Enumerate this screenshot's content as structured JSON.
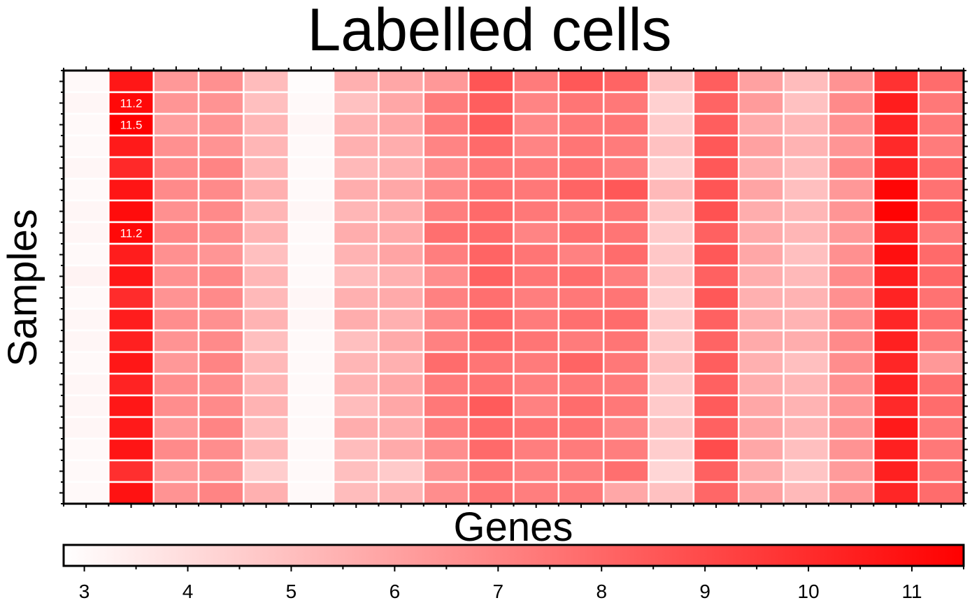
{
  "chart_data": {
    "type": "heatmap",
    "title": "Labelled cells",
    "xlabel": "Genes",
    "ylabel": "Samples",
    "n_rows": 20,
    "n_cols": 20,
    "colormap": [
      "#ffffff",
      "#ff0000"
    ],
    "colorbar": {
      "range": [
        2.8,
        11.5
      ],
      "ticks": [
        3,
        4,
        5,
        6,
        7,
        8,
        9,
        10,
        11
      ],
      "tick_labels": [
        "3",
        "4",
        "5",
        "6",
        "7",
        "8",
        "9",
        "10",
        "11"
      ],
      "orientation": "horizontal"
    },
    "values": [
      [
        3.0,
        10.7,
        6.3,
        6.6,
        5.1,
        2.9,
        5.5,
        5.8,
        6.3,
        8.6,
        7.3,
        8.5,
        8.1,
        4.9,
        8.3,
        6.0,
        5.1,
        6.5,
        9.8,
        7.8
      ],
      [
        3.1,
        11.2,
        6.4,
        6.5,
        5.0,
        3.0,
        4.9,
        5.8,
        7.3,
        8.3,
        7.0,
        7.5,
        7.4,
        4.4,
        8.1,
        6.2,
        4.9,
        6.8,
        10.5,
        7.4
      ],
      [
        3.0,
        11.5,
        6.1,
        6.5,
        5.3,
        3.1,
        5.4,
        5.8,
        7.3,
        8.4,
        6.9,
        7.4,
        7.5,
        4.6,
        8.3,
        5.7,
        5.3,
        6.6,
        10.3,
        7.4
      ],
      [
        3.0,
        10.6,
        6.6,
        6.5,
        5.3,
        3.0,
        5.5,
        5.6,
        7.0,
        7.9,
        7.0,
        7.5,
        7.3,
        4.9,
        8.5,
        6.0,
        5.4,
        6.4,
        10.1,
        7.3
      ],
      [
        3.1,
        10.1,
        6.8,
        7.0,
        5.3,
        3.0,
        5.2,
        5.5,
        6.7,
        7.4,
        7.3,
        7.6,
        7.2,
        4.5,
        8.5,
        5.6,
        5.1,
        6.9,
        10.2,
        7.9
      ],
      [
        3.0,
        10.8,
        6.8,
        6.8,
        5.5,
        3.0,
        5.6,
        5.8,
        6.8,
        7.6,
        7.4,
        8.1,
        8.5,
        5.2,
        8.6,
        5.9,
        5.0,
        6.3,
        11.3,
        7.6
      ],
      [
        3.1,
        11.1,
        6.6,
        6.8,
        5.3,
        3.1,
        5.3,
        5.6,
        7.2,
        7.9,
        7.4,
        7.2,
        7.5,
        4.8,
        8.7,
        5.6,
        5.3,
        6.4,
        11.4,
        8.2
      ],
      [
        3.1,
        11.2,
        6.9,
        6.7,
        5.4,
        3.0,
        5.6,
        5.7,
        7.7,
        7.9,
        7.0,
        7.7,
        7.5,
        4.6,
        8.2,
        5.7,
        5.3,
        6.3,
        10.4,
        7.3
      ],
      [
        3.0,
        10.5,
        6.6,
        6.4,
        5.0,
        3.0,
        5.4,
        5.9,
        7.2,
        8.1,
        7.5,
        7.1,
        7.8,
        4.7,
        8.5,
        5.8,
        5.0,
        6.6,
        11.0,
        7.9
      ],
      [
        3.2,
        10.7,
        6.6,
        6.9,
        5.3,
        3.0,
        5.1,
        5.5,
        6.7,
        8.2,
        7.5,
        7.8,
        7.2,
        4.8,
        8.2,
        5.6,
        5.2,
        6.8,
        10.5,
        8.0
      ],
      [
        3.0,
        10.0,
        6.5,
        6.8,
        5.2,
        3.1,
        5.5,
        5.7,
        7.1,
        7.7,
        7.2,
        7.4,
        7.5,
        4.5,
        8.5,
        5.5,
        5.4,
        6.6,
        10.3,
        7.6
      ],
      [
        3.1,
        10.5,
        6.7,
        6.6,
        5.4,
        3.1,
        5.6,
        5.5,
        6.8,
        7.9,
        7.3,
        7.7,
        7.8,
        4.6,
        8.2,
        5.6,
        5.4,
        6.7,
        10.2,
        7.7
      ],
      [
        3.1,
        10.4,
        6.5,
        6.8,
        5.0,
        3.0,
        5.0,
        5.7,
        7.1,
        7.8,
        7.5,
        7.3,
        7.5,
        4.7,
        8.1,
        5.7,
        5.6,
        6.8,
        10.4,
        7.3
      ],
      [
        3.0,
        10.7,
        6.3,
        7.0,
        5.2,
        3.0,
        5.3,
        5.5,
        7.8,
        7.5,
        7.3,
        8.1,
        7.4,
        5.0,
        8.3,
        5.5,
        5.0,
        6.7,
        10.2,
        6.3
      ],
      [
        3.1,
        10.3,
        6.7,
        6.7,
        5.3,
        3.0,
        5.4,
        5.8,
        7.3,
        7.6,
        7.2,
        7.4,
        7.3,
        4.7,
        8.2,
        5.6,
        5.3,
        6.6,
        10.3,
        7.7
      ],
      [
        3.1,
        10.7,
        6.7,
        6.8,
        5.4,
        3.0,
        5.1,
        5.8,
        7.4,
        8.4,
        7.1,
        7.8,
        7.4,
        4.6,
        8.4,
        5.8,
        5.4,
        6.4,
        10.1,
        7.8
      ],
      [
        3.1,
        10.6,
        6.3,
        7.0,
        5.1,
        3.0,
        5.6,
        5.6,
        7.2,
        7.9,
        7.6,
        7.6,
        6.9,
        4.9,
        8.2,
        5.9,
        5.4,
        6.5,
        10.6,
        7.4
      ],
      [
        3.0,
        10.8,
        6.8,
        6.7,
        5.2,
        3.0,
        5.1,
        5.7,
        6.7,
        7.9,
        7.2,
        7.3,
        7.2,
        4.5,
        8.9,
        5.8,
        5.0,
        6.5,
        10.4,
        7.4
      ],
      [
        3.0,
        9.9,
        6.2,
        6.5,
        4.5,
        3.0,
        5.0,
        4.6,
        6.5,
        7.5,
        7.1,
        7.2,
        7.7,
        4.2,
        8.2,
        5.6,
        4.8,
        6.2,
        10.4,
        7.6
      ],
      [
        3.0,
        10.9,
        6.5,
        7.0,
        5.5,
        3.0,
        5.1,
        5.4,
        6.7,
        7.5,
        7.2,
        7.3,
        5.8,
        4.9,
        8.0,
        6.0,
        5.2,
        6.4,
        10.2,
        7.8
      ]
    ],
    "cell_labels": [
      {
        "row": 1,
        "col": 1,
        "text": "11.2"
      },
      {
        "row": 2,
        "col": 1,
        "text": "11.5"
      },
      {
        "row": 7,
        "col": 1,
        "text": "11.2"
      }
    ],
    "grid": true
  }
}
